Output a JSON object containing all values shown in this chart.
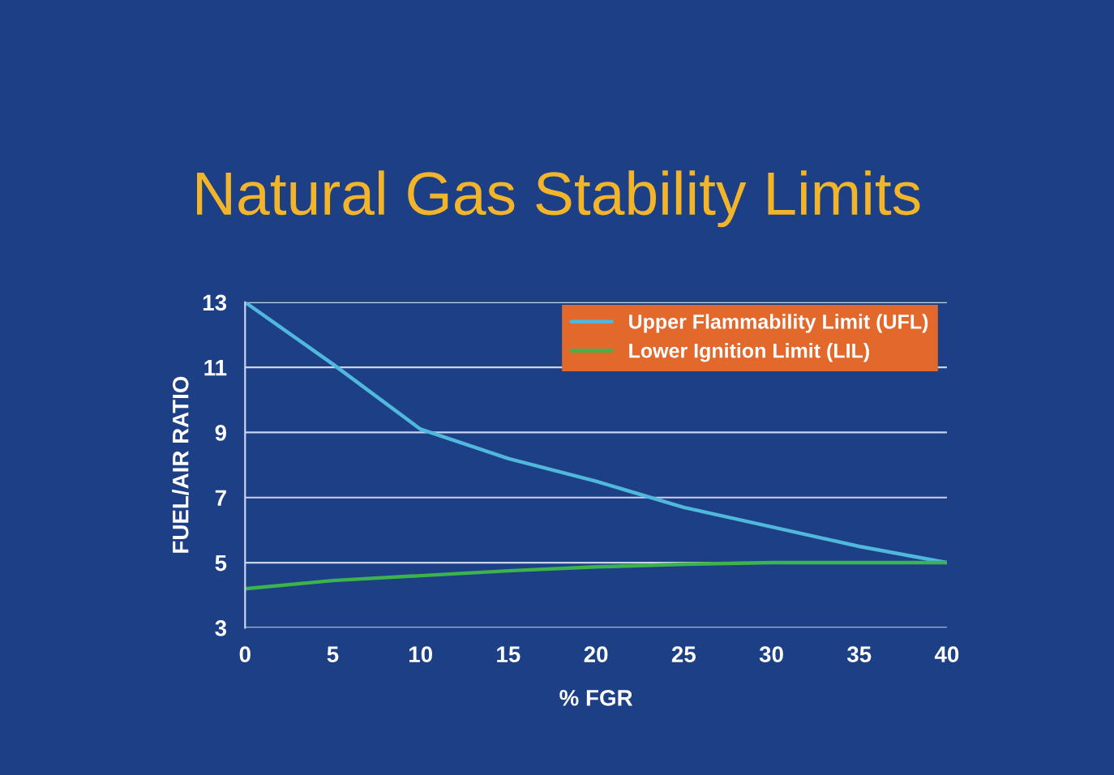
{
  "chart_data": {
    "type": "line",
    "title": "Natural Gas Stability Limits",
    "xlabel": "% FGR",
    "ylabel": "FUEL/AIR RATIO",
    "x": [
      0,
      5,
      10,
      15,
      20,
      25,
      30,
      35,
      40
    ],
    "series": [
      {
        "name": "Upper Flammability Limit (UFL)",
        "color": "#4fb8dc",
        "values": [
          13,
          11.1,
          9.1,
          8.2,
          7.5,
          6.7,
          6.1,
          5.5,
          5
        ]
      },
      {
        "name": "Lower Ignition Limit (LIL)",
        "color": "#3cb44b",
        "values": [
          4.2,
          4.45,
          4.6,
          4.75,
          4.87,
          4.95,
          5,
          5,
          5
        ]
      }
    ],
    "xlim": [
      0,
      40
    ],
    "xticks": [
      0,
      5,
      10,
      15,
      20,
      25,
      30,
      35,
      40
    ],
    "ylim": [
      3,
      13
    ],
    "yticks": [
      3,
      5,
      7,
      9,
      11,
      13
    ],
    "grid": "y",
    "legend": "top right",
    "marker": "none",
    "line_style": "solid"
  }
}
